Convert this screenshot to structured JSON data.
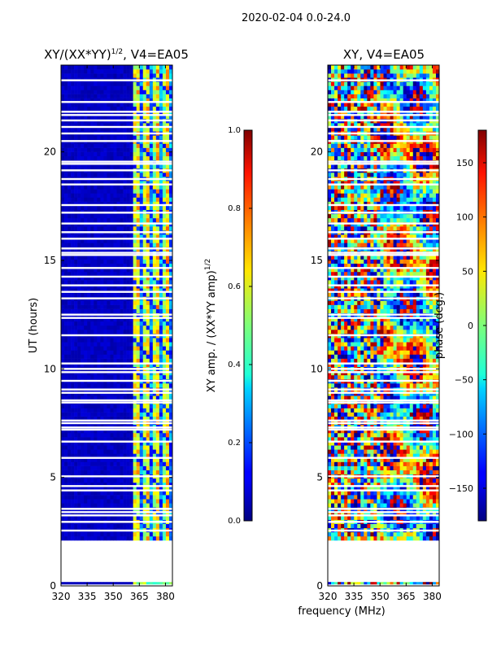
{
  "suptitle": "2020-02-04 0.0-24.0",
  "chart_data": [
    {
      "type": "heatmap",
      "title": "XY/(XX*YY)^(1/2), V4=EA05",
      "title_main": "XY/(XX*YY)",
      "title_sup": "1/2",
      "title_tail": ", V4=EA05",
      "xlabel": "frequency (MHz)",
      "ylabel": "UT (hours)",
      "xlim": [
        320,
        384
      ],
      "ylim": [
        0,
        24
      ],
      "xticks": [
        320,
        335,
        350,
        365,
        380
      ],
      "yticks": [
        0,
        5,
        10,
        15,
        20
      ],
      "data_start_hour": 2.1,
      "colormap": "jet",
      "colorbar": {
        "label": "XY amp. / (XX*YY amp)^(1/2)",
        "label_main": "XY amp. / (XX*YY amp)",
        "label_sup": "1/2",
        "range": [
          0.0,
          1.0
        ],
        "ticks": [
          "0.0",
          "0.2",
          "0.4",
          "0.6",
          "0.8",
          "1.0"
        ]
      },
      "flagged_hours": [
        0.02,
        2.55,
        2.95,
        3.25,
        3.4,
        3.55,
        4.4,
        4.6,
        5.05,
        5.9,
        6.65,
        7.2,
        7.3,
        7.5,
        7.62,
        8.45,
        8.55,
        8.9,
        9.05,
        9.45,
        9.85,
        10.0,
        10.25,
        11.55,
        12.35,
        12.5,
        13.25,
        13.55,
        13.85,
        14.25,
        14.65,
        15.25,
        15.35,
        15.55,
        16.0,
        16.3,
        16.7,
        17.2,
        17.55,
        18.5,
        18.75,
        19.15,
        19.45,
        19.55,
        20.5,
        20.85,
        21.15,
        21.45,
        21.7,
        21.85,
        22.3,
        23.3
      ]
    },
    {
      "type": "heatmap",
      "title": "XY, V4=EA05",
      "xlabel": "frequency (MHz)",
      "ylabel": "",
      "xlim": [
        320,
        384
      ],
      "ylim": [
        0,
        24
      ],
      "xticks": [
        320,
        335,
        350,
        365,
        380
      ],
      "yticks": [
        0,
        5,
        10,
        15,
        20
      ],
      "data_start_hour": 2.1,
      "colormap": "jet",
      "colorbar": {
        "label": "phase (deg.)",
        "range": [
          -180,
          180
        ],
        "ticks": [
          "150",
          "100",
          "50",
          "0",
          "−50",
          "−100",
          "−150"
        ],
        "tick_values": [
          150,
          100,
          50,
          0,
          -50,
          -100,
          -150
        ]
      },
      "flagged_hours": [
        0.02,
        2.55,
        2.95,
        3.25,
        3.4,
        3.55,
        4.4,
        4.6,
        5.05,
        5.9,
        6.65,
        7.2,
        7.3,
        7.5,
        7.62,
        8.45,
        8.55,
        8.9,
        9.05,
        9.45,
        9.85,
        10.0,
        10.25,
        11.55,
        12.35,
        12.5,
        13.25,
        13.55,
        13.85,
        14.25,
        14.65,
        15.25,
        15.35,
        15.55,
        16.0,
        16.3,
        16.7,
        17.2,
        17.55,
        18.5,
        18.75,
        19.15,
        19.45,
        19.55,
        20.5,
        20.85,
        21.15,
        21.45,
        21.7,
        21.85,
        22.3,
        23.3
      ]
    }
  ]
}
